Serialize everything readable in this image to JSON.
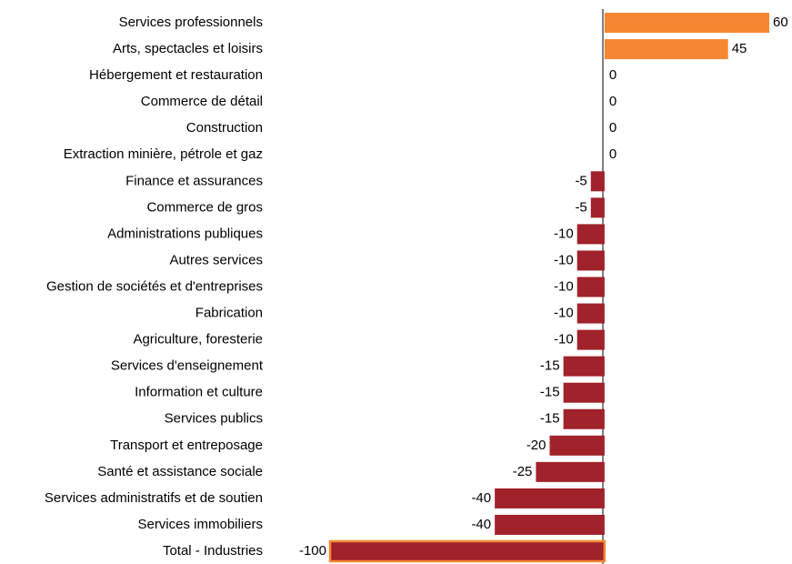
{
  "chart_data": {
    "type": "barh",
    "categories": [
      "Services professionnels",
      "Arts, spectacles et loisirs",
      "Hébergement et restauration",
      "Commerce de détail",
      "Construction",
      "Extraction minière, pétrole et gaz",
      "Finance et assurances",
      "Commerce de gros",
      "Administrations publiques",
      "Autres services",
      "Gestion de sociétés et d'entreprises",
      "Fabrication",
      "Agriculture, foresterie",
      "Services d'enseignement",
      "Information et culture",
      "Services publics",
      "Transport et entreposage",
      "Santé et assistance sociale",
      "Services administratifs et de soutien",
      "Services immobiliers",
      "Total - Industries"
    ],
    "values": [
      60,
      45,
      0,
      0,
      0,
      0,
      -5,
      -5,
      -10,
      -10,
      -10,
      -10,
      -10,
      -15,
      -15,
      -15,
      -20,
      -25,
      -40,
      -40,
      -100
    ],
    "colors": [
      "#f58733",
      "#f58733",
      "#a0222a",
      "#a0222a",
      "#a0222a",
      "#a0222a",
      "#a0222a",
      "#a0222a",
      "#a0222a",
      "#a0222a",
      "#a0222a",
      "#a0222a",
      "#a0222a",
      "#a0222a",
      "#a0222a",
      "#a0222a",
      "#a0222a",
      "#a0222a",
      "#a0222a",
      "#a0222a",
      "#a0222a"
    ],
    "edge_colors": [
      null,
      null,
      null,
      null,
      null,
      null,
      null,
      null,
      null,
      null,
      null,
      null,
      null,
      null,
      null,
      null,
      null,
      null,
      null,
      null,
      "#f58733"
    ]
  }
}
